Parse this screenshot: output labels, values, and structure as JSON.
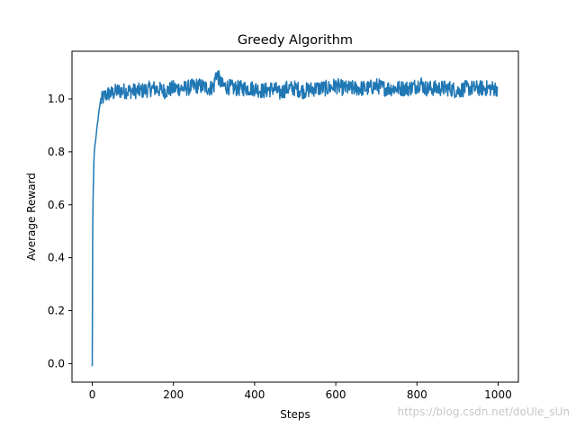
{
  "chart_data": {
    "type": "line",
    "title": "Greedy Algorithm",
    "xlabel": "Steps",
    "ylabel": "Average Reward",
    "xlim": [
      -50,
      1050
    ],
    "ylim": [
      -0.07,
      1.18
    ],
    "xticks": [
      0,
      200,
      400,
      600,
      800,
      1000
    ],
    "yticks": [
      0.0,
      0.2,
      0.4,
      0.6,
      0.8,
      1.0
    ],
    "xtick_labels": [
      "0",
      "200",
      "400",
      "600",
      "800",
      "1000"
    ],
    "ytick_labels": [
      "0.0",
      "0.2",
      "0.4",
      "0.6",
      "0.8",
      "1.0"
    ],
    "grid": false,
    "legend": "none",
    "series": [
      {
        "color": "#1f77b4",
        "x": [
          0,
          1,
          2,
          3,
          4,
          5,
          6,
          8,
          10,
          12,
          14,
          16,
          18,
          20,
          25,
          30,
          40,
          50,
          60,
          80,
          100,
          120,
          150,
          180,
          200,
          230,
          260,
          290,
          300,
          305,
          320,
          350,
          380,
          400,
          420,
          450,
          460,
          480,
          500,
          520,
          550,
          580,
          600,
          620,
          650,
          680,
          700,
          720,
          750,
          780,
          800,
          810,
          820,
          850,
          880,
          900,
          920,
          950,
          980,
          999
        ],
        "y": [
          -0.01,
          0.5,
          0.62,
          0.7,
          0.76,
          0.8,
          0.82,
          0.84,
          0.87,
          0.9,
          0.92,
          0.95,
          0.97,
          0.99,
          1.0,
          1.01,
          1.02,
          1.02,
          1.03,
          1.03,
          1.03,
          1.03,
          1.04,
          1.03,
          1.04,
          1.04,
          1.05,
          1.04,
          1.05,
          1.1,
          1.05,
          1.04,
          1.04,
          1.04,
          1.03,
          1.04,
          1.02,
          1.04,
          1.04,
          1.03,
          1.04,
          1.04,
          1.05,
          1.04,
          1.04,
          1.04,
          1.05,
          1.04,
          1.04,
          1.04,
          1.05,
          1.06,
          1.04,
          1.04,
          1.04,
          1.03,
          1.04,
          1.04,
          1.04,
          1.04
        ]
      }
    ]
  },
  "watermark": "https://blog.csdn.net/doUle_sUn"
}
